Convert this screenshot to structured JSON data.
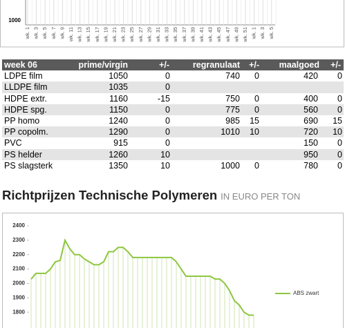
{
  "top_chart": {
    "y_label": "1000",
    "categories": [
      "wk. 1",
      "wk. 3",
      "wk. 5",
      "wk. 7",
      "wk. 9",
      "wk. 11",
      "wk. 13",
      "wk. 15",
      "wk. 17",
      "wk. 19",
      "wk. 21",
      "wk. 23",
      "wk. 25",
      "wk. 27",
      "wk. 29",
      "wk. 31",
      "wk. 33",
      "wk. 35",
      "wk. 37",
      "wk. 39",
      "wk. 41",
      "wk. 43",
      "wk. 45",
      "wk. 47",
      "wk. 49",
      "wk. 51",
      "wk. 1",
      "wk. 3",
      "wk. 5"
    ]
  },
  "table": {
    "header": [
      "week 06",
      "prime/virgin",
      "+/-",
      "regranulaat",
      "+/-",
      "maalgoed",
      "+/-"
    ],
    "rows": [
      [
        "LDPE film",
        "1050",
        "0",
        "740",
        "0",
        "420",
        "0"
      ],
      [
        "LLDPE film",
        "1035",
        "0",
        null,
        null,
        null,
        null
      ],
      [
        "HDPE extr.",
        "1160",
        "-15",
        "750",
        "0",
        "400",
        "0"
      ],
      [
        "HDPE spg.",
        "1150",
        "0",
        "775",
        "0",
        "560",
        "0"
      ],
      [
        "PP homo",
        "1240",
        "0",
        "985",
        "15",
        "690",
        "15"
      ],
      [
        "PP copolm.",
        "1290",
        "0",
        "1010",
        "10",
        "720",
        "10"
      ],
      [
        "PVC",
        "915",
        "0",
        null,
        null,
        "150",
        "0"
      ],
      [
        "PS helder",
        "1260",
        "10",
        null,
        null,
        "950",
        "0"
      ],
      [
        "PS slagsterk",
        "1350",
        "10",
        "1000",
        "0",
        "780",
        "0"
      ]
    ]
  },
  "section": {
    "title": "Richtprijzen Technische Polymeren",
    "unit": "IN EURO PER TON"
  },
  "chart_data": {
    "type": "line",
    "series": [
      {
        "name": "ABS zwart",
        "color": "#8dc63f",
        "values": [
          2030,
          2070,
          2070,
          2070,
          2100,
          2150,
          2160,
          2300,
          2240,
          2200,
          2200,
          2170,
          2150,
          2130,
          2130,
          2150,
          2220,
          2220,
          2250,
          2250,
          2220,
          2180,
          2180,
          2180,
          2180,
          2180,
          2180,
          2180,
          2180,
          2180,
          2150,
          2100,
          2050,
          2050,
          2050,
          2050,
          2050,
          2050,
          2030,
          2030,
          2000,
          1950,
          1880,
          1850,
          1800,
          1780,
          1780
        ]
      }
    ],
    "ylim": [
      1700,
      2400
    ],
    "yticks": [
      1800,
      1900,
      2000,
      2100,
      2200,
      2300,
      2400
    ]
  }
}
